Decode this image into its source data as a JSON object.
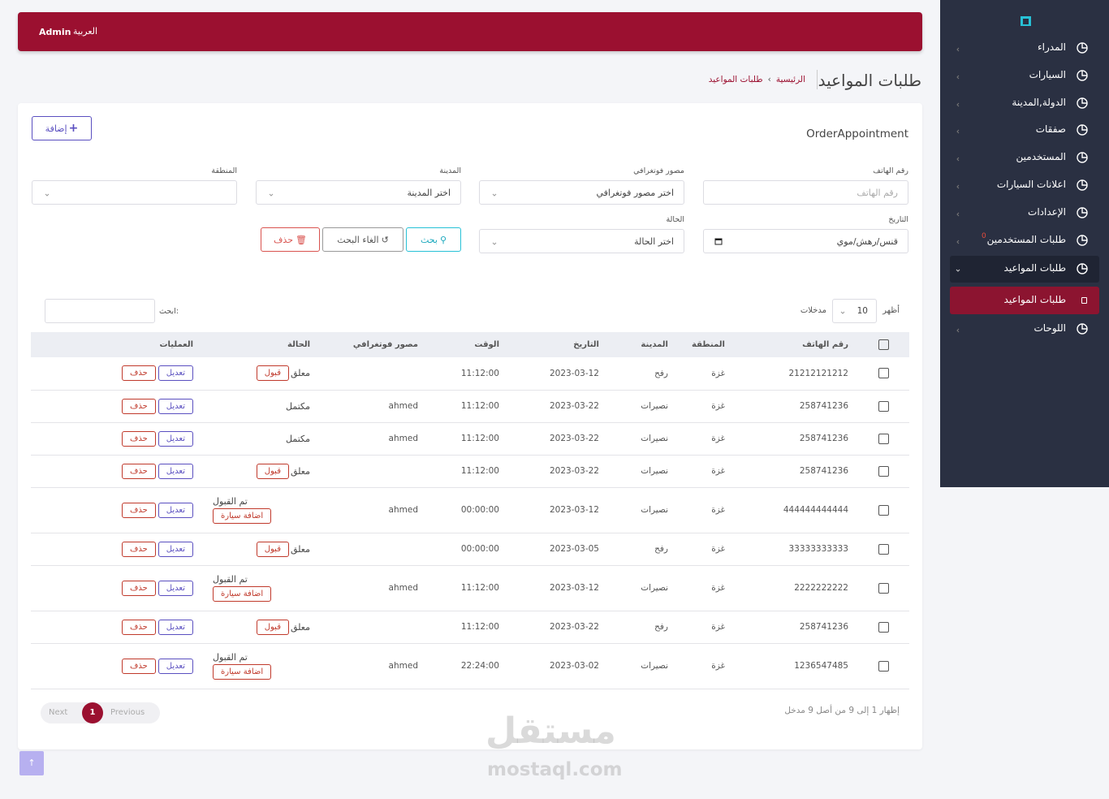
{
  "topbar": {
    "user": "Admin",
    "language": "العربية"
  },
  "sidebar": {
    "items": [
      {
        "label": "المدراء"
      },
      {
        "label": "السيارات"
      },
      {
        "label": "الدولة,المدينة"
      },
      {
        "label": "صفقات"
      },
      {
        "label": "المستخدمين"
      },
      {
        "label": "اعلانات السيارات"
      },
      {
        "label": "الإعدادات"
      },
      {
        "label": "طلبات المستخدمين",
        "badge": 0
      },
      {
        "label": "طلبات المواعيد",
        "children": [
          "طلبات المواعيد"
        ]
      },
      {
        "label": "اللوحات"
      }
    ]
  },
  "page": {
    "title": "طلبات المواعيد",
    "breadcrumb": [
      "الرئيسية",
      "طلبات المواعيد"
    ]
  },
  "card": {
    "title": "OrderAppointment",
    "add_button": "إضافة"
  },
  "filters": [
    {
      "label": "رقم الهاتف",
      "placeholder": "رقم الهاتف"
    },
    {
      "label": "مصور فوتغرافي",
      "placeholder": "اختر مصور فوتغرافي"
    },
    {
      "label": "المدينة",
      "placeholder": "اختر المدينة"
    },
    {
      "label": "المنطقة"
    },
    {
      "label": "التاريخ",
      "placeholder": "قنس/رهش/موي"
    },
    {
      "label": "الحالة",
      "placeholder": "اختر الحالة"
    }
  ],
  "buttons": {
    "search": "بحث",
    "reset": "الغاء البحث",
    "delete": "حذف"
  },
  "table_controls": {
    "show": "أظهر",
    "page_length": 10,
    "entries": "مدخلات",
    "search": "ابحث:"
  },
  "table": {
    "columns": [
      "رقم الهاتف",
      "المنطقة",
      "المدينة",
      "التاريخ",
      "الوقت",
      "مصور فوتغرافي",
      "الحالة",
      "العمليات"
    ],
    "row_actions": {
      "edit": "تعديل",
      "delete": "حذف"
    },
    "rows": [
      {
        "phone": "21212121212",
        "region": "غزة",
        "city": "رفح",
        "date": "2023-03-12",
        "time": "11:12:00",
        "photographer": null,
        "status": "معلق",
        "status_action": "قبول"
      },
      {
        "phone": "258741236",
        "region": "غزة",
        "city": "نصيرات",
        "date": "2023-03-22",
        "time": "11:12:00",
        "photographer": "ahmed",
        "status": "مكتمل",
        "status_action": null
      },
      {
        "phone": "258741236",
        "region": "غزة",
        "city": "نصيرات",
        "date": "2023-03-22",
        "time": "11:12:00",
        "photographer": "ahmed",
        "status": "مكتمل",
        "status_action": null
      },
      {
        "phone": "258741236",
        "region": "غزة",
        "city": "نصيرات",
        "date": "2023-03-22",
        "time": "11:12:00",
        "photographer": null,
        "status": "معلق",
        "status_action": "قبول"
      },
      {
        "phone": "444444444444",
        "region": "غزة",
        "city": "نصيرات",
        "date": "2023-03-12",
        "time": "00:00:00",
        "photographer": "ahmed",
        "status": "تم القبول",
        "status_action": "اضافة سيارة"
      },
      {
        "phone": "33333333333",
        "region": "غزة",
        "city": "رفح",
        "date": "2023-03-05",
        "time": "00:00:00",
        "photographer": null,
        "status": "معلق",
        "status_action": "قبول"
      },
      {
        "phone": "2222222222",
        "region": "غزة",
        "city": "نصيرات",
        "date": "2023-03-12",
        "time": "11:12:00",
        "photographer": "ahmed",
        "status": "تم القبول",
        "status_action": "اضافة سيارة"
      },
      {
        "phone": "258741236",
        "region": "غزة",
        "city": "رفح",
        "date": "2023-03-22",
        "time": "11:12:00",
        "photographer": null,
        "status": "معلق",
        "status_action": "قبول"
      },
      {
        "phone": "1236547485",
        "region": "غزة",
        "city": "نصيرات",
        "date": "2023-03-02",
        "time": "22:24:00",
        "photographer": "ahmed",
        "status": "تم القبول",
        "status_action": "اضافة سيارة"
      }
    ]
  },
  "footer": {
    "info": "إظهار 1 إلى 9 من أصل 9 مدخل",
    "pagination": {
      "previous": "Previous",
      "current": 1,
      "next": "Next"
    }
  },
  "watermark": {
    "arabic": "مستقل",
    "latin": "mostaql.com"
  }
}
